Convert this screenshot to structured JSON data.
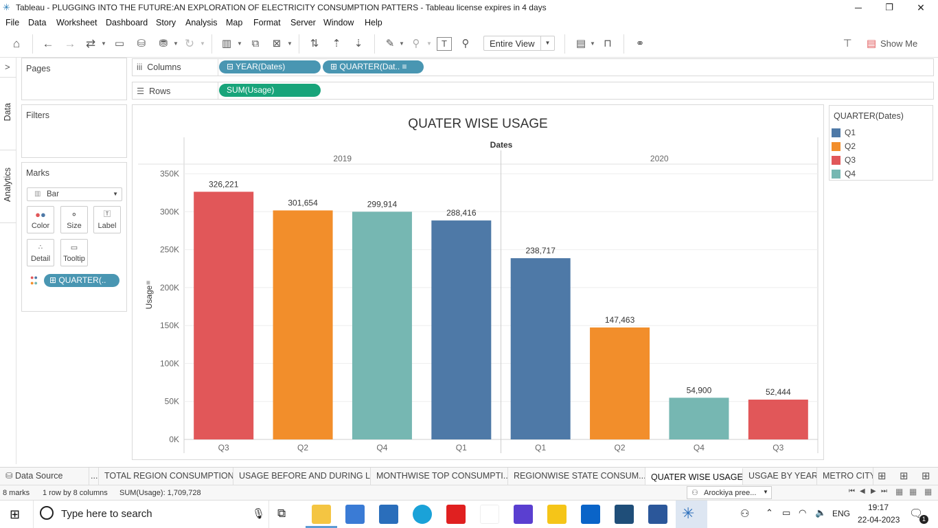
{
  "window": {
    "title": "Tableau - PLUGGING INTO THE FUTURE:AN EXPLORATION OF ELECTRICITY CONSUMPTION PATTERS - Tableau license expires in 4 days",
    "minimize": "─",
    "restore": "❐",
    "close": "✕"
  },
  "menu": [
    "File",
    "Data",
    "Worksheet",
    "Dashboard",
    "Story",
    "Analysis",
    "Map",
    "Format",
    "Server",
    "Window",
    "Help"
  ],
  "toolbar": {
    "view_select": "Entire View",
    "show_me": "Show Me"
  },
  "side_tabs": {
    "data": "Data",
    "analytics": "Analytics",
    "collapse": ">"
  },
  "cards": {
    "pages": "Pages",
    "filters": "Filters",
    "marks": "Marks",
    "mark_type": "Bar",
    "mark_buttons": [
      "Color",
      "Size",
      "Label",
      "Detail",
      "Tooltip"
    ],
    "marks_pill": "QUARTER(.."
  },
  "shelves": {
    "columns_label": "Columns",
    "rows_label": "Rows",
    "columns_pills": [
      "YEAR(Dates)",
      "QUARTER(Dat.."
    ],
    "rows_pills": [
      "SUM(Usage)"
    ]
  },
  "legend": {
    "title": "QUARTER(Dates)",
    "items": [
      {
        "label": "Q1",
        "color": "#4e79a7"
      },
      {
        "label": "Q2",
        "color": "#f28e2b"
      },
      {
        "label": "Q3",
        "color": "#e15759"
      },
      {
        "label": "Q4",
        "color": "#76b7b2"
      }
    ]
  },
  "chart_data": {
    "type": "bar",
    "title": "QUATER WISE USAGE",
    "column_header": "Dates",
    "ylabel": "Usage",
    "ylim": [
      0,
      350000
    ],
    "ytick_values": [
      0,
      50000,
      100000,
      150000,
      200000,
      250000,
      300000,
      350000
    ],
    "ytick_labels": [
      "0K",
      "50K",
      "100K",
      "150K",
      "200K",
      "250K",
      "300K",
      "350K"
    ],
    "panes": [
      {
        "year": "2019",
        "bars": [
          {
            "quarter": "Q3",
            "value": 326221,
            "label": "326,221",
            "color": "#e15759"
          },
          {
            "quarter": "Q2",
            "value": 301654,
            "label": "301,654",
            "color": "#f28e2b"
          },
          {
            "quarter": "Q4",
            "value": 299914,
            "label": "299,914",
            "color": "#76b7b2"
          },
          {
            "quarter": "Q1",
            "value": 288416,
            "label": "288,416",
            "color": "#4e79a7"
          }
        ]
      },
      {
        "year": "2020",
        "bars": [
          {
            "quarter": "Q1",
            "value": 238717,
            "label": "238,717",
            "color": "#4e79a7"
          },
          {
            "quarter": "Q2",
            "value": 147463,
            "label": "147,463",
            "color": "#f28e2b"
          },
          {
            "quarter": "Q4",
            "value": 54900,
            "label": "54,900",
            "color": "#76b7b2"
          },
          {
            "quarter": "Q3",
            "value": 52444,
            "label": "52,444",
            "color": "#e15759"
          }
        ]
      }
    ],
    "grid": true,
    "legend": "right"
  },
  "sheet_tabs": {
    "data_source": "Data Source",
    "dots": "...",
    "tabs": [
      "TOTAL REGION CONSUMPTION",
      "USAGE BEFORE AND DURING L...",
      "MONTHWISE TOP CONSUMPTI...",
      "REGIONWISE STATE CONSUM...",
      "QUATER WISE USAGE",
      "USGAE BY YEAR",
      "METRO CITY"
    ],
    "active": "QUATER WISE USAGE"
  },
  "status": {
    "marks": "8 marks",
    "dims": "1 row by 8 columns",
    "sum": "SUM(Usage): 1,709,728",
    "user": "Arockiya pree..."
  },
  "taskbar": {
    "search_placeholder": "Type here to search",
    "lang": "ENG",
    "time": "19:17",
    "date": "22-04-2023",
    "notif": "1"
  }
}
